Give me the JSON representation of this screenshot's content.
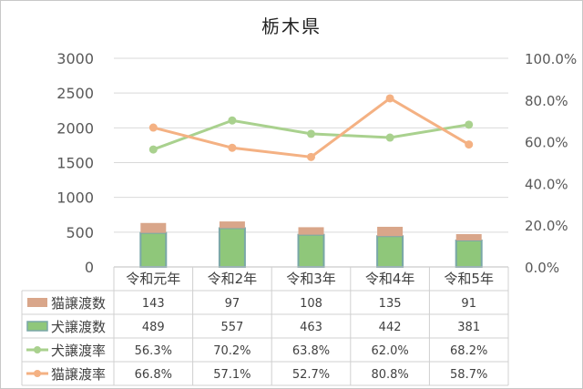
{
  "chart_data": {
    "type": "bar",
    "title": "栃木県",
    "categories": [
      "令和元年",
      "令和2年",
      "令和3年",
      "令和4年",
      "令和5年"
    ],
    "y_left": {
      "min": 0,
      "max": 3000,
      "ticks": [
        "0",
        "500",
        "1000",
        "1500",
        "2000",
        "2500",
        "3000"
      ]
    },
    "y_right": {
      "min": 0,
      "max": 100,
      "ticks": [
        "0.0%",
        "20.0%",
        "40.0%",
        "60.0%",
        "80.0%",
        "100.0%"
      ]
    },
    "bar_series": [
      {
        "name": "犬譲渡数",
        "values": [
          489,
          557,
          463,
          442,
          381
        ],
        "labels": [
          "489",
          "557",
          "463",
          "442",
          "381"
        ],
        "color": "#8fc77a",
        "border": "#7aa7a8"
      },
      {
        "name": "猫譲渡数",
        "values": [
          143,
          97,
          108,
          135,
          91
        ],
        "labels": [
          "143",
          "97",
          "108",
          "135",
          "91"
        ],
        "color": "#d9a68a"
      }
    ],
    "line_series": [
      {
        "name": "犬譲渡率",
        "values": [
          56.3,
          70.2,
          63.8,
          62.0,
          68.2
        ],
        "labels": [
          "56.3%",
          "70.2%",
          "63.8%",
          "62.0%",
          "68.2%"
        ],
        "color": "#a9d18e"
      },
      {
        "name": "猫譲渡率",
        "values": [
          66.8,
          57.1,
          52.7,
          80.8,
          58.7
        ],
        "labels": [
          "66.8%",
          "57.1%",
          "52.7%",
          "80.8%",
          "58.7%"
        ],
        "color": "#f4b183"
      }
    ],
    "table_rows": [
      "猫譲渡数",
      "犬譲渡数",
      "犬譲渡率",
      "猫譲渡率"
    ],
    "grid": true,
    "legend": "data-table"
  }
}
